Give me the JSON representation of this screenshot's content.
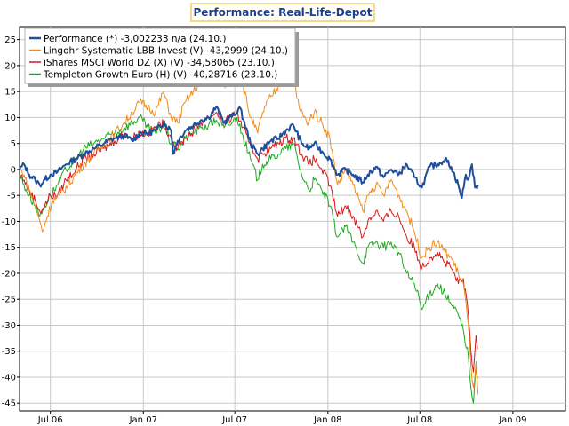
{
  "title": "Performance: Real-Life-Depot",
  "chart_data": {
    "type": "line",
    "title": "Performance: Real-Life-Depot",
    "xlabel": "",
    "ylabel": "",
    "ylim": [
      -45,
      30
    ],
    "y_ticks": [
      25,
      20,
      15,
      10,
      5,
      0,
      -5,
      -10,
      -15,
      -20,
      -25,
      -30,
      -35,
      -40,
      -45
    ],
    "x_ticks": [
      {
        "label": "Jul 06",
        "date": "2006-07-01"
      },
      {
        "label": "Jan 07",
        "date": "2007-01-01"
      },
      {
        "label": "Jul 07",
        "date": "2007-07-01"
      },
      {
        "label": "Jan 08",
        "date": "2008-01-01"
      },
      {
        "label": "Jul 08",
        "date": "2008-07-01"
      },
      {
        "label": "Jan 09",
        "date": "2009-01-01"
      }
    ],
    "xlim": [
      "2006-05-01",
      "2009-04-15"
    ],
    "grid": true,
    "legend_position": "top-left",
    "series": [
      {
        "name": "Performance (*) -3,002233 n/a (24.10.)",
        "color": "#1f4e9a",
        "points": [
          [
            "2006-05-01",
            0
          ],
          [
            "2006-05-10",
            1
          ],
          [
            "2006-05-20",
            -1
          ],
          [
            "2006-06-01",
            -2
          ],
          [
            "2006-06-10",
            -3
          ],
          [
            "2006-06-20",
            -2
          ],
          [
            "2006-07-01",
            -1
          ],
          [
            "2006-07-15",
            -0.5
          ],
          [
            "2006-08-01",
            1
          ],
          [
            "2006-08-20",
            2
          ],
          [
            "2006-09-05",
            3
          ],
          [
            "2006-09-25",
            4
          ],
          [
            "2006-10-15",
            5
          ],
          [
            "2006-11-05",
            6
          ],
          [
            "2006-11-25",
            6.5
          ],
          [
            "2006-12-10",
            5.5
          ],
          [
            "2006-12-25",
            7
          ],
          [
            "2007-01-10",
            7
          ],
          [
            "2007-01-25",
            7.5
          ],
          [
            "2007-02-10",
            9
          ],
          [
            "2007-02-25",
            7.5
          ],
          [
            "2007-03-01",
            3
          ],
          [
            "2007-03-10",
            5.5
          ],
          [
            "2007-03-25",
            7.5
          ],
          [
            "2007-04-10",
            8.5
          ],
          [
            "2007-04-25",
            9.5
          ],
          [
            "2007-05-10",
            10
          ],
          [
            "2007-05-25",
            12
          ],
          [
            "2007-06-10",
            9
          ],
          [
            "2007-06-20",
            10
          ],
          [
            "2007-07-01",
            10.5
          ],
          [
            "2007-07-10",
            12
          ],
          [
            "2007-07-20",
            9
          ],
          [
            "2007-08-01",
            5
          ],
          [
            "2007-08-15",
            3
          ],
          [
            "2007-08-25",
            4
          ],
          [
            "2007-09-10",
            5.5
          ],
          [
            "2007-09-25",
            6
          ],
          [
            "2007-10-10",
            7.5
          ],
          [
            "2007-10-25",
            8.5
          ],
          [
            "2007-11-10",
            5
          ],
          [
            "2007-11-25",
            4
          ],
          [
            "2007-12-05",
            5
          ],
          [
            "2007-12-20",
            3.5
          ],
          [
            "2008-01-05",
            2
          ],
          [
            "2008-01-20",
            -1
          ],
          [
            "2008-02-05",
            0
          ],
          [
            "2008-02-20",
            -1
          ],
          [
            "2008-03-10",
            -2.5
          ],
          [
            "2008-03-20",
            -1
          ],
          [
            "2008-04-05",
            0.5
          ],
          [
            "2008-04-20",
            -1.5
          ],
          [
            "2008-05-05",
            0
          ],
          [
            "2008-05-20",
            -1
          ],
          [
            "2008-06-05",
            1
          ],
          [
            "2008-06-20",
            -1.5
          ],
          [
            "2008-07-05",
            -3.5
          ],
          [
            "2008-07-20",
            0.5
          ],
          [
            "2008-08-05",
            1
          ],
          [
            "2008-08-20",
            2
          ],
          [
            "2008-09-01",
            0.5
          ],
          [
            "2008-09-15",
            -3
          ],
          [
            "2008-09-22",
            -5.5
          ],
          [
            "2008-09-30",
            -1
          ],
          [
            "2008-10-05",
            -2
          ],
          [
            "2008-10-12",
            1
          ],
          [
            "2008-10-18",
            -3.5
          ],
          [
            "2008-10-24",
            -3
          ]
        ]
      },
      {
        "name": "Lingohr-Systematic-LBB-Invest (V) -43,2999 (24.10.)",
        "color": "#f08c1c",
        "points": [
          [
            "2006-05-01",
            0
          ],
          [
            "2006-05-10",
            -1
          ],
          [
            "2006-05-20",
            -4
          ],
          [
            "2006-06-01",
            -7
          ],
          [
            "2006-06-10",
            -10
          ],
          [
            "2006-06-15",
            -12
          ],
          [
            "2006-06-25",
            -9
          ],
          [
            "2006-07-05",
            -6
          ],
          [
            "2006-07-20",
            -5
          ],
          [
            "2006-08-05",
            -3
          ],
          [
            "2006-08-20",
            -1
          ],
          [
            "2006-09-05",
            1
          ],
          [
            "2006-09-25",
            3
          ],
          [
            "2006-10-15",
            5
          ],
          [
            "2006-11-05",
            7
          ],
          [
            "2006-11-25",
            9
          ],
          [
            "2006-12-10",
            11
          ],
          [
            "2006-12-25",
            13
          ],
          [
            "2007-01-10",
            12
          ],
          [
            "2007-01-25",
            11
          ],
          [
            "2007-02-10",
            15
          ],
          [
            "2007-02-25",
            10
          ],
          [
            "2007-03-10",
            9
          ],
          [
            "2007-03-25",
            13
          ],
          [
            "2007-04-10",
            15
          ],
          [
            "2007-04-25",
            17
          ],
          [
            "2007-05-10",
            20
          ],
          [
            "2007-05-25",
            19
          ],
          [
            "2007-06-10",
            16
          ],
          [
            "2007-06-25",
            20
          ],
          [
            "2007-07-05",
            21
          ],
          [
            "2007-07-15",
            17
          ],
          [
            "2007-08-01",
            10
          ],
          [
            "2007-08-15",
            7
          ],
          [
            "2007-08-25",
            11
          ],
          [
            "2007-09-10",
            14
          ],
          [
            "2007-09-25",
            16
          ],
          [
            "2007-10-10",
            18
          ],
          [
            "2007-10-20",
            20
          ],
          [
            "2007-11-05",
            12
          ],
          [
            "2007-11-20",
            9
          ],
          [
            "2007-12-05",
            11
          ],
          [
            "2007-12-20",
            9
          ],
          [
            "2008-01-05",
            6
          ],
          [
            "2008-01-20",
            -3
          ],
          [
            "2008-02-05",
            0
          ],
          [
            "2008-02-20",
            -3
          ],
          [
            "2008-03-10",
            -8
          ],
          [
            "2008-03-20",
            -5
          ],
          [
            "2008-04-05",
            -3
          ],
          [
            "2008-04-20",
            -5
          ],
          [
            "2008-05-05",
            -2
          ],
          [
            "2008-05-20",
            -5
          ],
          [
            "2008-06-05",
            -8
          ],
          [
            "2008-06-20",
            -12
          ],
          [
            "2008-07-05",
            -17
          ],
          [
            "2008-07-20",
            -15
          ],
          [
            "2008-08-05",
            -14
          ],
          [
            "2008-08-20",
            -16
          ],
          [
            "2008-09-01",
            -17
          ],
          [
            "2008-09-15",
            -20
          ],
          [
            "2008-09-25",
            -22
          ],
          [
            "2008-10-05",
            -30
          ],
          [
            "2008-10-10",
            -38
          ],
          [
            "2008-10-15",
            -42
          ],
          [
            "2008-10-20",
            -37
          ],
          [
            "2008-10-24",
            -43.3
          ]
        ]
      },
      {
        "name": "iShares MSCI World DZ (X) (V) -34,58065 (23.10.)",
        "color": "#d81818",
        "points": [
          [
            "2006-05-01",
            -1
          ],
          [
            "2006-05-10",
            -2
          ],
          [
            "2006-05-20",
            -4
          ],
          [
            "2006-06-01",
            -6
          ],
          [
            "2006-06-10",
            -8
          ],
          [
            "2006-06-20",
            -7
          ],
          [
            "2006-07-01",
            -5
          ],
          [
            "2006-07-15",
            -5
          ],
          [
            "2006-08-01",
            -2
          ],
          [
            "2006-08-20",
            0
          ],
          [
            "2006-09-05",
            2
          ],
          [
            "2006-09-25",
            3
          ],
          [
            "2006-10-15",
            4
          ],
          [
            "2006-11-05",
            5.5
          ],
          [
            "2006-11-25",
            7
          ],
          [
            "2006-12-10",
            6
          ],
          [
            "2006-12-25",
            7
          ],
          [
            "2007-01-10",
            7
          ],
          [
            "2007-01-25",
            8
          ],
          [
            "2007-02-10",
            9
          ],
          [
            "2007-02-25",
            6
          ],
          [
            "2007-03-10",
            4
          ],
          [
            "2007-03-25",
            6
          ],
          [
            "2007-04-10",
            7.5
          ],
          [
            "2007-04-25",
            9
          ],
          [
            "2007-05-10",
            10
          ],
          [
            "2007-05-25",
            11
          ],
          [
            "2007-06-10",
            9
          ],
          [
            "2007-06-25",
            10
          ],
          [
            "2007-07-05",
            11
          ],
          [
            "2007-07-15",
            8
          ],
          [
            "2007-08-01",
            5
          ],
          [
            "2007-08-15",
            2
          ],
          [
            "2007-08-25",
            3
          ],
          [
            "2007-09-10",
            4
          ],
          [
            "2007-09-25",
            5
          ],
          [
            "2007-10-10",
            6
          ],
          [
            "2007-10-25",
            6
          ],
          [
            "2007-11-10",
            3
          ],
          [
            "2007-11-25",
            1
          ],
          [
            "2007-12-05",
            2
          ],
          [
            "2007-12-20",
            0
          ],
          [
            "2008-01-05",
            -3
          ],
          [
            "2008-01-20",
            -9
          ],
          [
            "2008-02-05",
            -7
          ],
          [
            "2008-02-20",
            -9
          ],
          [
            "2008-03-10",
            -13
          ],
          [
            "2008-03-20",
            -10
          ],
          [
            "2008-04-05",
            -8
          ],
          [
            "2008-04-20",
            -10
          ],
          [
            "2008-05-05",
            -8
          ],
          [
            "2008-05-20",
            -9
          ],
          [
            "2008-06-05",
            -13
          ],
          [
            "2008-06-20",
            -15
          ],
          [
            "2008-07-05",
            -19
          ],
          [
            "2008-07-20",
            -17
          ],
          [
            "2008-08-05",
            -16
          ],
          [
            "2008-08-20",
            -18
          ],
          [
            "2008-09-01",
            -19
          ],
          [
            "2008-09-15",
            -22
          ],
          [
            "2008-09-25",
            -21
          ],
          [
            "2008-10-05",
            -28
          ],
          [
            "2008-10-10",
            -35
          ],
          [
            "2008-10-15",
            -39
          ],
          [
            "2008-10-20",
            -32
          ],
          [
            "2008-10-23",
            -34.6
          ]
        ]
      },
      {
        "name": "Templeton Growth Euro (H) (V) -40,28716 (23.10.)",
        "color": "#1ea81e",
        "points": [
          [
            "2006-05-01",
            -1
          ],
          [
            "2006-05-10",
            -3
          ],
          [
            "2006-05-20",
            -5
          ],
          [
            "2006-06-01",
            -7
          ],
          [
            "2006-06-10",
            -9
          ],
          [
            "2006-06-20",
            -7
          ],
          [
            "2006-07-01",
            -5
          ],
          [
            "2006-07-15",
            -3
          ],
          [
            "2006-08-01",
            0
          ],
          [
            "2006-08-20",
            2
          ],
          [
            "2006-09-05",
            4
          ],
          [
            "2006-09-25",
            5
          ],
          [
            "2006-10-15",
            6
          ],
          [
            "2006-11-05",
            7
          ],
          [
            "2006-11-25",
            8
          ],
          [
            "2006-12-10",
            9
          ],
          [
            "2006-12-25",
            10
          ],
          [
            "2007-01-10",
            8
          ],
          [
            "2007-01-25",
            7
          ],
          [
            "2007-02-10",
            8.5
          ],
          [
            "2007-02-25",
            5
          ],
          [
            "2007-03-10",
            4
          ],
          [
            "2007-03-25",
            6
          ],
          [
            "2007-04-10",
            7
          ],
          [
            "2007-04-25",
            8
          ],
          [
            "2007-05-10",
            8.5
          ],
          [
            "2007-05-25",
            9.5
          ],
          [
            "2007-06-10",
            8
          ],
          [
            "2007-06-25",
            9
          ],
          [
            "2007-07-05",
            10
          ],
          [
            "2007-07-15",
            7
          ],
          [
            "2007-08-01",
            2
          ],
          [
            "2007-08-15",
            -2
          ],
          [
            "2007-08-25",
            1
          ],
          [
            "2007-09-10",
            2
          ],
          [
            "2007-09-25",
            3
          ],
          [
            "2007-10-10",
            4
          ],
          [
            "2007-10-25",
            5
          ],
          [
            "2007-11-10",
            -1
          ],
          [
            "2007-11-25",
            -4
          ],
          [
            "2007-12-05",
            -2
          ],
          [
            "2007-12-20",
            -4
          ],
          [
            "2008-01-05",
            -7
          ],
          [
            "2008-01-20",
            -13
          ],
          [
            "2008-02-05",
            -11
          ],
          [
            "2008-02-20",
            -14
          ],
          [
            "2008-03-10",
            -18
          ],
          [
            "2008-03-20",
            -15
          ],
          [
            "2008-04-05",
            -14
          ],
          [
            "2008-04-20",
            -15
          ],
          [
            "2008-05-05",
            -14
          ],
          [
            "2008-05-20",
            -16
          ],
          [
            "2008-06-05",
            -20
          ],
          [
            "2008-06-20",
            -22
          ],
          [
            "2008-07-05",
            -27
          ],
          [
            "2008-07-20",
            -24
          ],
          [
            "2008-08-05",
            -22
          ],
          [
            "2008-08-20",
            -24
          ],
          [
            "2008-09-01",
            -26
          ],
          [
            "2008-09-15",
            -28
          ],
          [
            "2008-09-25",
            -31
          ],
          [
            "2008-10-05",
            -36
          ],
          [
            "2008-10-10",
            -42
          ],
          [
            "2008-10-15",
            -45
          ],
          [
            "2008-10-20",
            -38
          ],
          [
            "2008-10-23",
            -40.3
          ]
        ]
      }
    ]
  }
}
